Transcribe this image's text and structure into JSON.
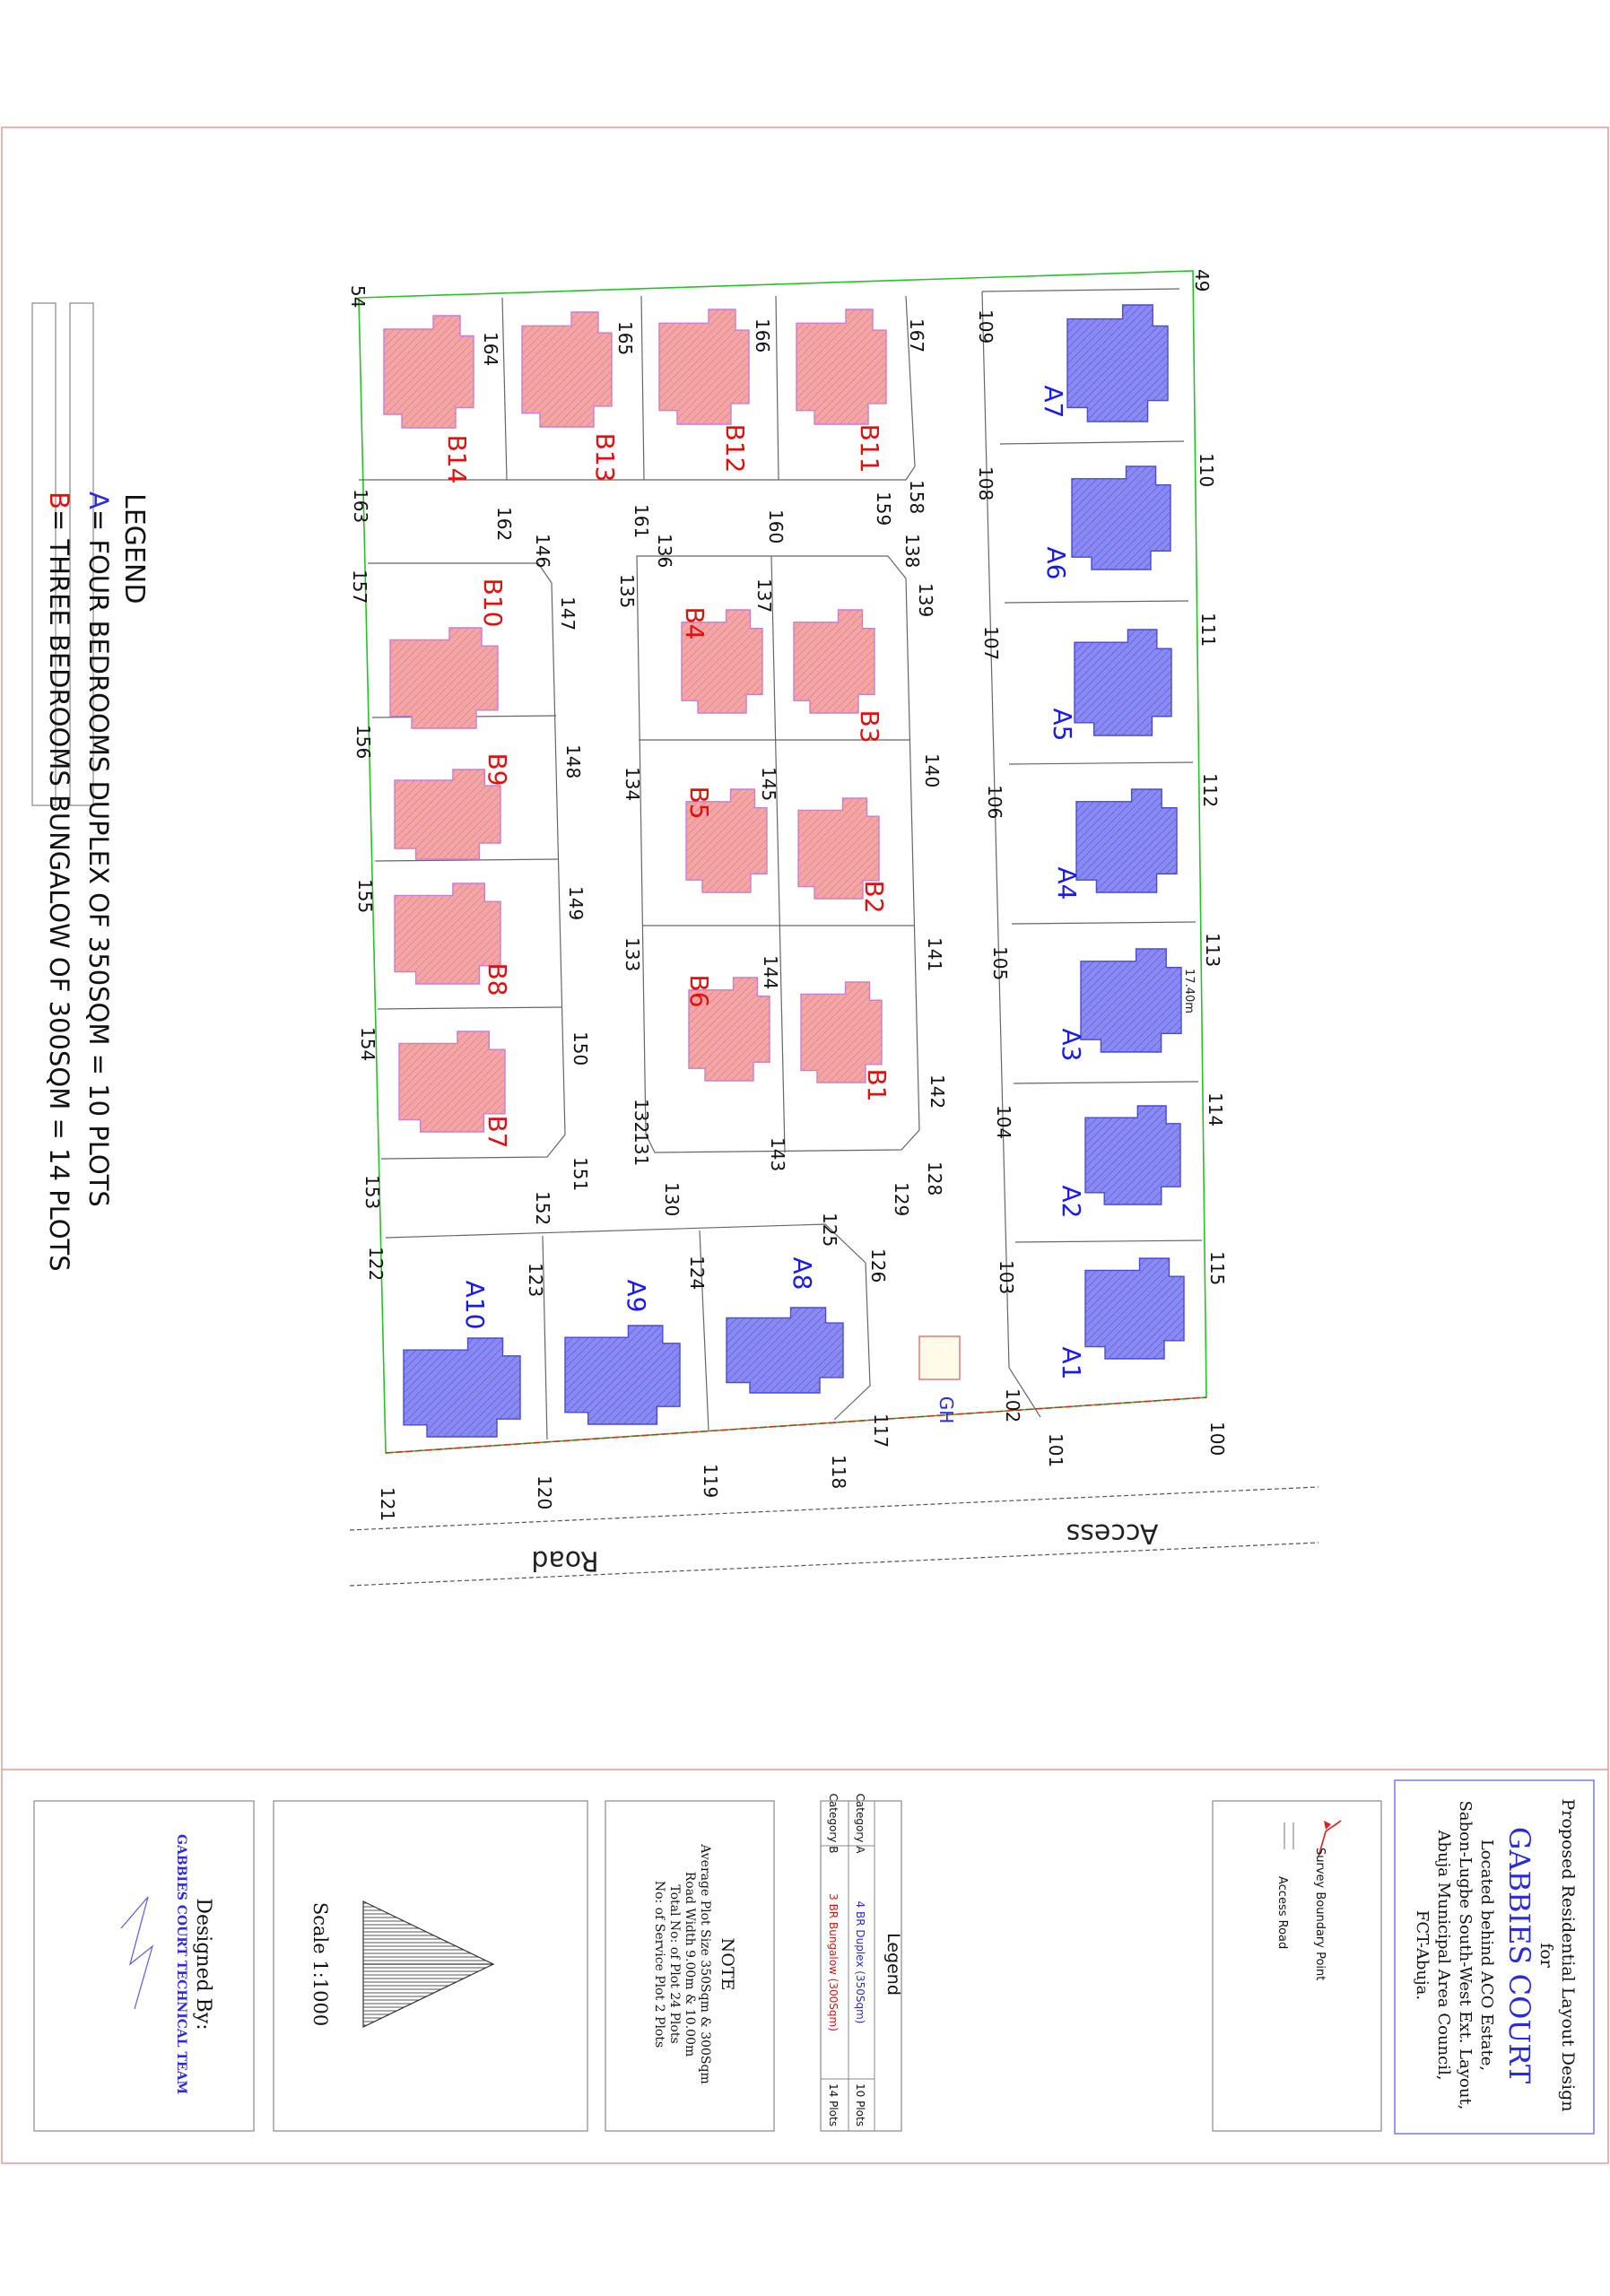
{
  "title_block": {
    "line1": "Proposed Residential Layout Design",
    "line2": "for",
    "project": "GABBIES COURT",
    "loc1": "Located behind ACO Estate,",
    "loc2": "Sabon-Lugbe South-West Ext. Layout,",
    "loc3": "Abuja Municipal Area Council,",
    "loc4": "FCT-Abuja."
  },
  "key": {
    "survey": "Survey Boundary Point",
    "access": "Access Road"
  },
  "legend_table": {
    "title": "Legend",
    "rows": [
      {
        "category": "Category A",
        "type": "4 BR Duplex (350Sqm)",
        "count": "10 Plots"
      },
      {
        "category": "Category B",
        "type": "3 BR Bungalow (300Sqm)",
        "count": "14 Plots"
      }
    ]
  },
  "note": {
    "title": "NOTE",
    "l1": "Average Plot Size 350Sqm & 300Sqm",
    "l2": "Road Width 9.00m & 10.00m",
    "l3": "Total No: of Plot 24 Plots",
    "l4": "No: of Service Plot 2 Plots"
  },
  "scale": {
    "label": "Scale 1:1000"
  },
  "designer": {
    "label": "Designed By:",
    "team": "GABBIES COURT TECHNICAL TEAM"
  },
  "map_legend": {
    "title": "LEGEND",
    "a_key": "A",
    "a_text": "= FOUR BEDROOMS DUPLEX OF 350SQM = 10 PLOTS",
    "b_key": "B",
    "b_text": "= THREE BEDROOMS BUNGALOW OF 300SQM = 14 PLOTS"
  },
  "road": {
    "a": "Access",
    "b": "Road"
  },
  "dimension": "17.40m",
  "guard_house": "GH",
  "plots_a": [
    "A1",
    "A2",
    "A3",
    "A4",
    "A5",
    "A6",
    "A7",
    "A8",
    "A9",
    "A10"
  ],
  "plots_b": [
    "B1",
    "B2",
    "B3",
    "B4",
    "B5",
    "B6",
    "B7",
    "B8",
    "B9",
    "B10",
    "B11",
    "B12",
    "B13",
    "B14"
  ],
  "points": [
    "49",
    "54",
    "100",
    "101",
    "102",
    "103",
    "104",
    "105",
    "106",
    "107",
    "108",
    "109",
    "110",
    "111",
    "112",
    "113",
    "114",
    "115",
    "117",
    "118",
    "119",
    "120",
    "121",
    "122",
    "123",
    "124",
    "125",
    "126",
    "128",
    "129",
    "130",
    "131",
    "132",
    "133",
    "134",
    "135",
    "136",
    "137",
    "138",
    "139",
    "140",
    "141",
    "142",
    "143",
    "144",
    "145",
    "146",
    "147",
    "148",
    "149",
    "150",
    "151",
    "152",
    "153",
    "154",
    "155",
    "156",
    "157",
    "158",
    "159",
    "160",
    "161",
    "162",
    "163",
    "164",
    "165",
    "166",
    "167"
  ],
  "colors": {
    "category_a": "#1a1aee",
    "category_b": "#e01010",
    "house_a_fill": "#8585f0",
    "house_b_fill": "#f2a0a0",
    "boundary": "#27c227",
    "frame": "#e07070"
  }
}
